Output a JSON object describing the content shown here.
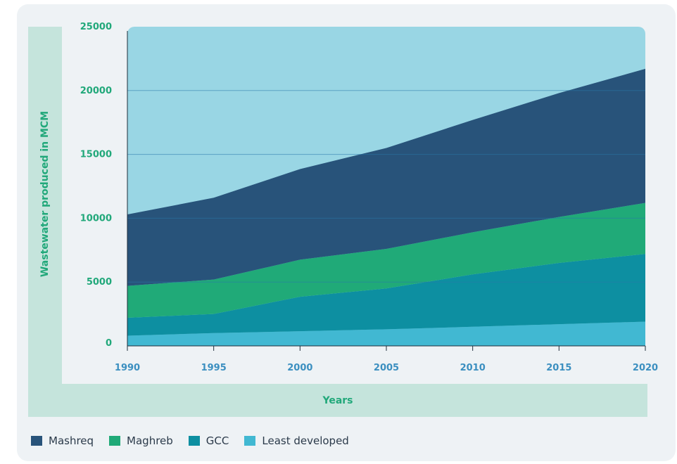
{
  "chart_data": {
    "type": "area",
    "stacked": true,
    "xlabel": "Years",
    "ylabel": "Wastewater produced in MCM",
    "x": [
      1990,
      1995,
      2000,
      2005,
      2010,
      2015,
      2020
    ],
    "ylim": [
      0,
      25000
    ],
    "yticks": [
      "0",
      "5000",
      "10000",
      "15000",
      "20000",
      "25000"
    ],
    "xticks": [
      "1990",
      "1995",
      "2000",
      "2005",
      "2010",
      "2015",
      "2020"
    ],
    "grid": true,
    "legend_position": "bottom-left",
    "background_color": "#99d6e4",
    "series": [
      {
        "name": "Least developed",
        "color": "#41b8d2",
        "values": [
          800,
          1000,
          1150,
          1300,
          1500,
          1700,
          1900
        ]
      },
      {
        "name": "GCC",
        "color": "#0d8fa1",
        "values": [
          1400,
          1500,
          2700,
          3200,
          4100,
          4800,
          5300
        ]
      },
      {
        "name": "Maghreb",
        "color": "#20aa78",
        "values": [
          2500,
          2700,
          2900,
          3100,
          3300,
          3600,
          4000
        ]
      },
      {
        "name": "Mashreq",
        "color": "#28537a",
        "values": [
          5600,
          6400,
          7100,
          7900,
          8800,
          9700,
          10500
        ]
      }
    ],
    "legend_order": [
      3,
      2,
      1,
      0
    ]
  }
}
